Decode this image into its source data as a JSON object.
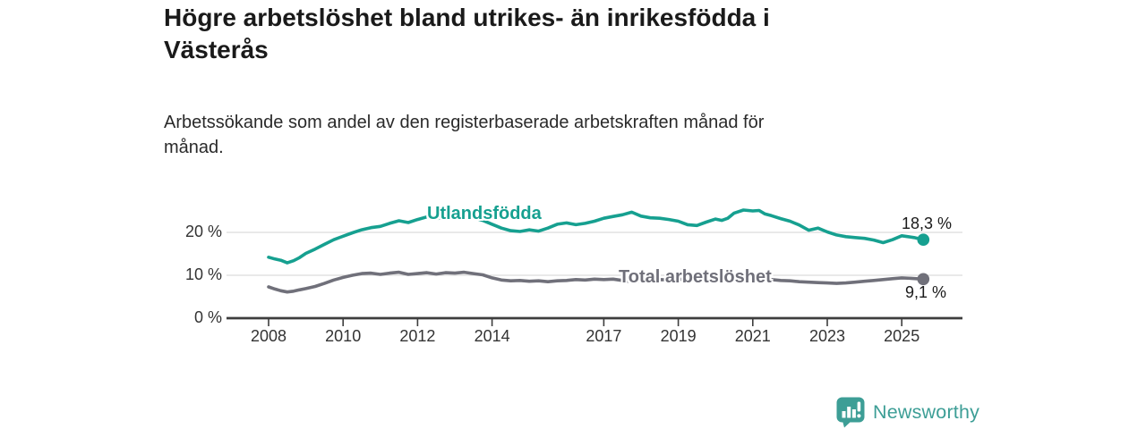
{
  "chart_data": {
    "type": "line",
    "title": "Högre arbetslöshet bland utrikes- än inrikesfödda i\nVästerås",
    "subtitle": "Arbetssökande som andel av den registerbaserade arbetskraften månad för\nmånad.",
    "grid": true,
    "legend_position": "inline-on-line",
    "xlim": [
      2007.9,
      2026.6
    ],
    "ylim": [
      0,
      27
    ],
    "x_axis": {
      "ticks": [
        2008,
        2010,
        2012,
        2014,
        2017,
        2019,
        2021,
        2023,
        2025
      ]
    },
    "y_axis": {
      "ticks": [
        {
          "value": 0,
          "label": "0 %"
        },
        {
          "value": 10,
          "label": "10 %"
        },
        {
          "value": 20,
          "label": "20 %"
        }
      ]
    },
    "series": [
      {
        "id": "utlandsfodda",
        "name": "Utlandsfödda",
        "color": "#16a090",
        "end_label": "18,3 %",
        "end_value": 18.3,
        "points": [
          [
            2008.0,
            14.2
          ],
          [
            2008.17,
            13.8
          ],
          [
            2008.33,
            13.5
          ],
          [
            2008.5,
            12.9
          ],
          [
            2008.67,
            13.4
          ],
          [
            2008.83,
            14.1
          ],
          [
            2009.0,
            15.1
          ],
          [
            2009.25,
            16.1
          ],
          [
            2009.5,
            17.2
          ],
          [
            2009.75,
            18.3
          ],
          [
            2010.0,
            19.1
          ],
          [
            2010.25,
            19.9
          ],
          [
            2010.5,
            20.6
          ],
          [
            2010.75,
            21.1
          ],
          [
            2011.0,
            21.4
          ],
          [
            2011.25,
            22.1
          ],
          [
            2011.5,
            22.7
          ],
          [
            2011.75,
            22.3
          ],
          [
            2012.0,
            23.0
          ],
          [
            2012.25,
            23.6
          ],
          [
            2012.5,
            23.2
          ],
          [
            2012.75,
            23.5
          ],
          [
            2013.0,
            23.3
          ],
          [
            2013.25,
            23.6
          ],
          [
            2013.5,
            23.4
          ],
          [
            2013.75,
            22.8
          ],
          [
            2014.0,
            21.9
          ],
          [
            2014.25,
            21.0
          ],
          [
            2014.5,
            20.4
          ],
          [
            2014.75,
            20.2
          ],
          [
            2015.0,
            20.6
          ],
          [
            2015.25,
            20.3
          ],
          [
            2015.5,
            21.0
          ],
          [
            2015.75,
            21.9
          ],
          [
            2016.0,
            22.2
          ],
          [
            2016.25,
            21.8
          ],
          [
            2016.5,
            22.1
          ],
          [
            2016.75,
            22.6
          ],
          [
            2017.0,
            23.3
          ],
          [
            2017.25,
            23.7
          ],
          [
            2017.5,
            24.1
          ],
          [
            2017.75,
            24.7
          ],
          [
            2018.0,
            23.8
          ],
          [
            2018.25,
            23.4
          ],
          [
            2018.5,
            23.3
          ],
          [
            2018.75,
            23.0
          ],
          [
            2019.0,
            22.6
          ],
          [
            2019.25,
            21.8
          ],
          [
            2019.5,
            21.6
          ],
          [
            2019.75,
            22.4
          ],
          [
            2020.0,
            23.1
          ],
          [
            2020.17,
            22.8
          ],
          [
            2020.33,
            23.3
          ],
          [
            2020.5,
            24.5
          ],
          [
            2020.75,
            25.2
          ],
          [
            2021.0,
            25.0
          ],
          [
            2021.17,
            25.1
          ],
          [
            2021.33,
            24.3
          ],
          [
            2021.5,
            23.9
          ],
          [
            2021.75,
            23.2
          ],
          [
            2022.0,
            22.6
          ],
          [
            2022.25,
            21.7
          ],
          [
            2022.5,
            20.5
          ],
          [
            2022.75,
            21.0
          ],
          [
            2023.0,
            20.1
          ],
          [
            2023.25,
            19.4
          ],
          [
            2023.5,
            19.0
          ],
          [
            2023.75,
            18.8
          ],
          [
            2024.0,
            18.6
          ],
          [
            2024.25,
            18.2
          ],
          [
            2024.5,
            17.6
          ],
          [
            2024.75,
            18.3
          ],
          [
            2025.0,
            19.2
          ],
          [
            2025.17,
            19.0
          ],
          [
            2025.33,
            18.8
          ],
          [
            2025.58,
            18.3
          ]
        ]
      },
      {
        "id": "total",
        "name": "Total arbetslöshet",
        "color": "#70707a",
        "end_label": "9,1 %",
        "end_value": 9.1,
        "points": [
          [
            2008.0,
            7.3
          ],
          [
            2008.17,
            6.8
          ],
          [
            2008.33,
            6.4
          ],
          [
            2008.5,
            6.1
          ],
          [
            2008.67,
            6.3
          ],
          [
            2008.83,
            6.6
          ],
          [
            2009.0,
            6.9
          ],
          [
            2009.25,
            7.4
          ],
          [
            2009.5,
            8.1
          ],
          [
            2009.75,
            8.9
          ],
          [
            2010.0,
            9.5
          ],
          [
            2010.25,
            10.0
          ],
          [
            2010.5,
            10.4
          ],
          [
            2010.75,
            10.5
          ],
          [
            2011.0,
            10.2
          ],
          [
            2011.25,
            10.5
          ],
          [
            2011.5,
            10.7
          ],
          [
            2011.75,
            10.2
          ],
          [
            2012.0,
            10.4
          ],
          [
            2012.25,
            10.6
          ],
          [
            2012.5,
            10.3
          ],
          [
            2012.75,
            10.6
          ],
          [
            2013.0,
            10.5
          ],
          [
            2013.25,
            10.7
          ],
          [
            2013.5,
            10.4
          ],
          [
            2013.75,
            10.1
          ],
          [
            2014.0,
            9.4
          ],
          [
            2014.25,
            8.9
          ],
          [
            2014.5,
            8.7
          ],
          [
            2014.75,
            8.8
          ],
          [
            2015.0,
            8.6
          ],
          [
            2015.25,
            8.7
          ],
          [
            2015.5,
            8.5
          ],
          [
            2015.75,
            8.7
          ],
          [
            2016.0,
            8.8
          ],
          [
            2016.25,
            9.0
          ],
          [
            2016.5,
            8.9
          ],
          [
            2016.75,
            9.1
          ],
          [
            2017.0,
            9.0
          ],
          [
            2017.25,
            9.1
          ],
          [
            2017.5,
            8.8
          ],
          [
            2017.75,
            8.5
          ],
          [
            2018.0,
            8.6
          ],
          [
            2018.25,
            8.8
          ],
          [
            2018.5,
            9.0
          ],
          [
            2018.75,
            8.9
          ],
          [
            2019.0,
            9.1
          ],
          [
            2019.25,
            9.0
          ],
          [
            2019.5,
            8.9
          ],
          [
            2019.75,
            9.1
          ],
          [
            2020.0,
            9.3
          ],
          [
            2020.25,
            9.6
          ],
          [
            2020.5,
            9.7
          ],
          [
            2020.75,
            9.6
          ],
          [
            2021.0,
            9.4
          ],
          [
            2021.25,
            9.2
          ],
          [
            2021.5,
            9.0
          ],
          [
            2021.75,
            8.8
          ],
          [
            2022.0,
            8.7
          ],
          [
            2022.25,
            8.5
          ],
          [
            2022.5,
            8.4
          ],
          [
            2022.75,
            8.3
          ],
          [
            2023.0,
            8.2
          ],
          [
            2023.25,
            8.1
          ],
          [
            2023.5,
            8.2
          ],
          [
            2023.75,
            8.4
          ],
          [
            2024.0,
            8.6
          ],
          [
            2024.25,
            8.8
          ],
          [
            2024.5,
            9.0
          ],
          [
            2024.75,
            9.2
          ],
          [
            2025.0,
            9.4
          ],
          [
            2025.25,
            9.3
          ],
          [
            2025.58,
            9.1
          ]
        ]
      }
    ],
    "colors": {
      "accent_teal": "#16a090",
      "series_gray": "#70707a",
      "gridline": "#dcdcdc",
      "axis": "#3d3d3d",
      "text_dark": "#1a1a1a"
    }
  },
  "branding": {
    "logo_text": "Newsworthy",
    "color": "#3d9e96"
  }
}
